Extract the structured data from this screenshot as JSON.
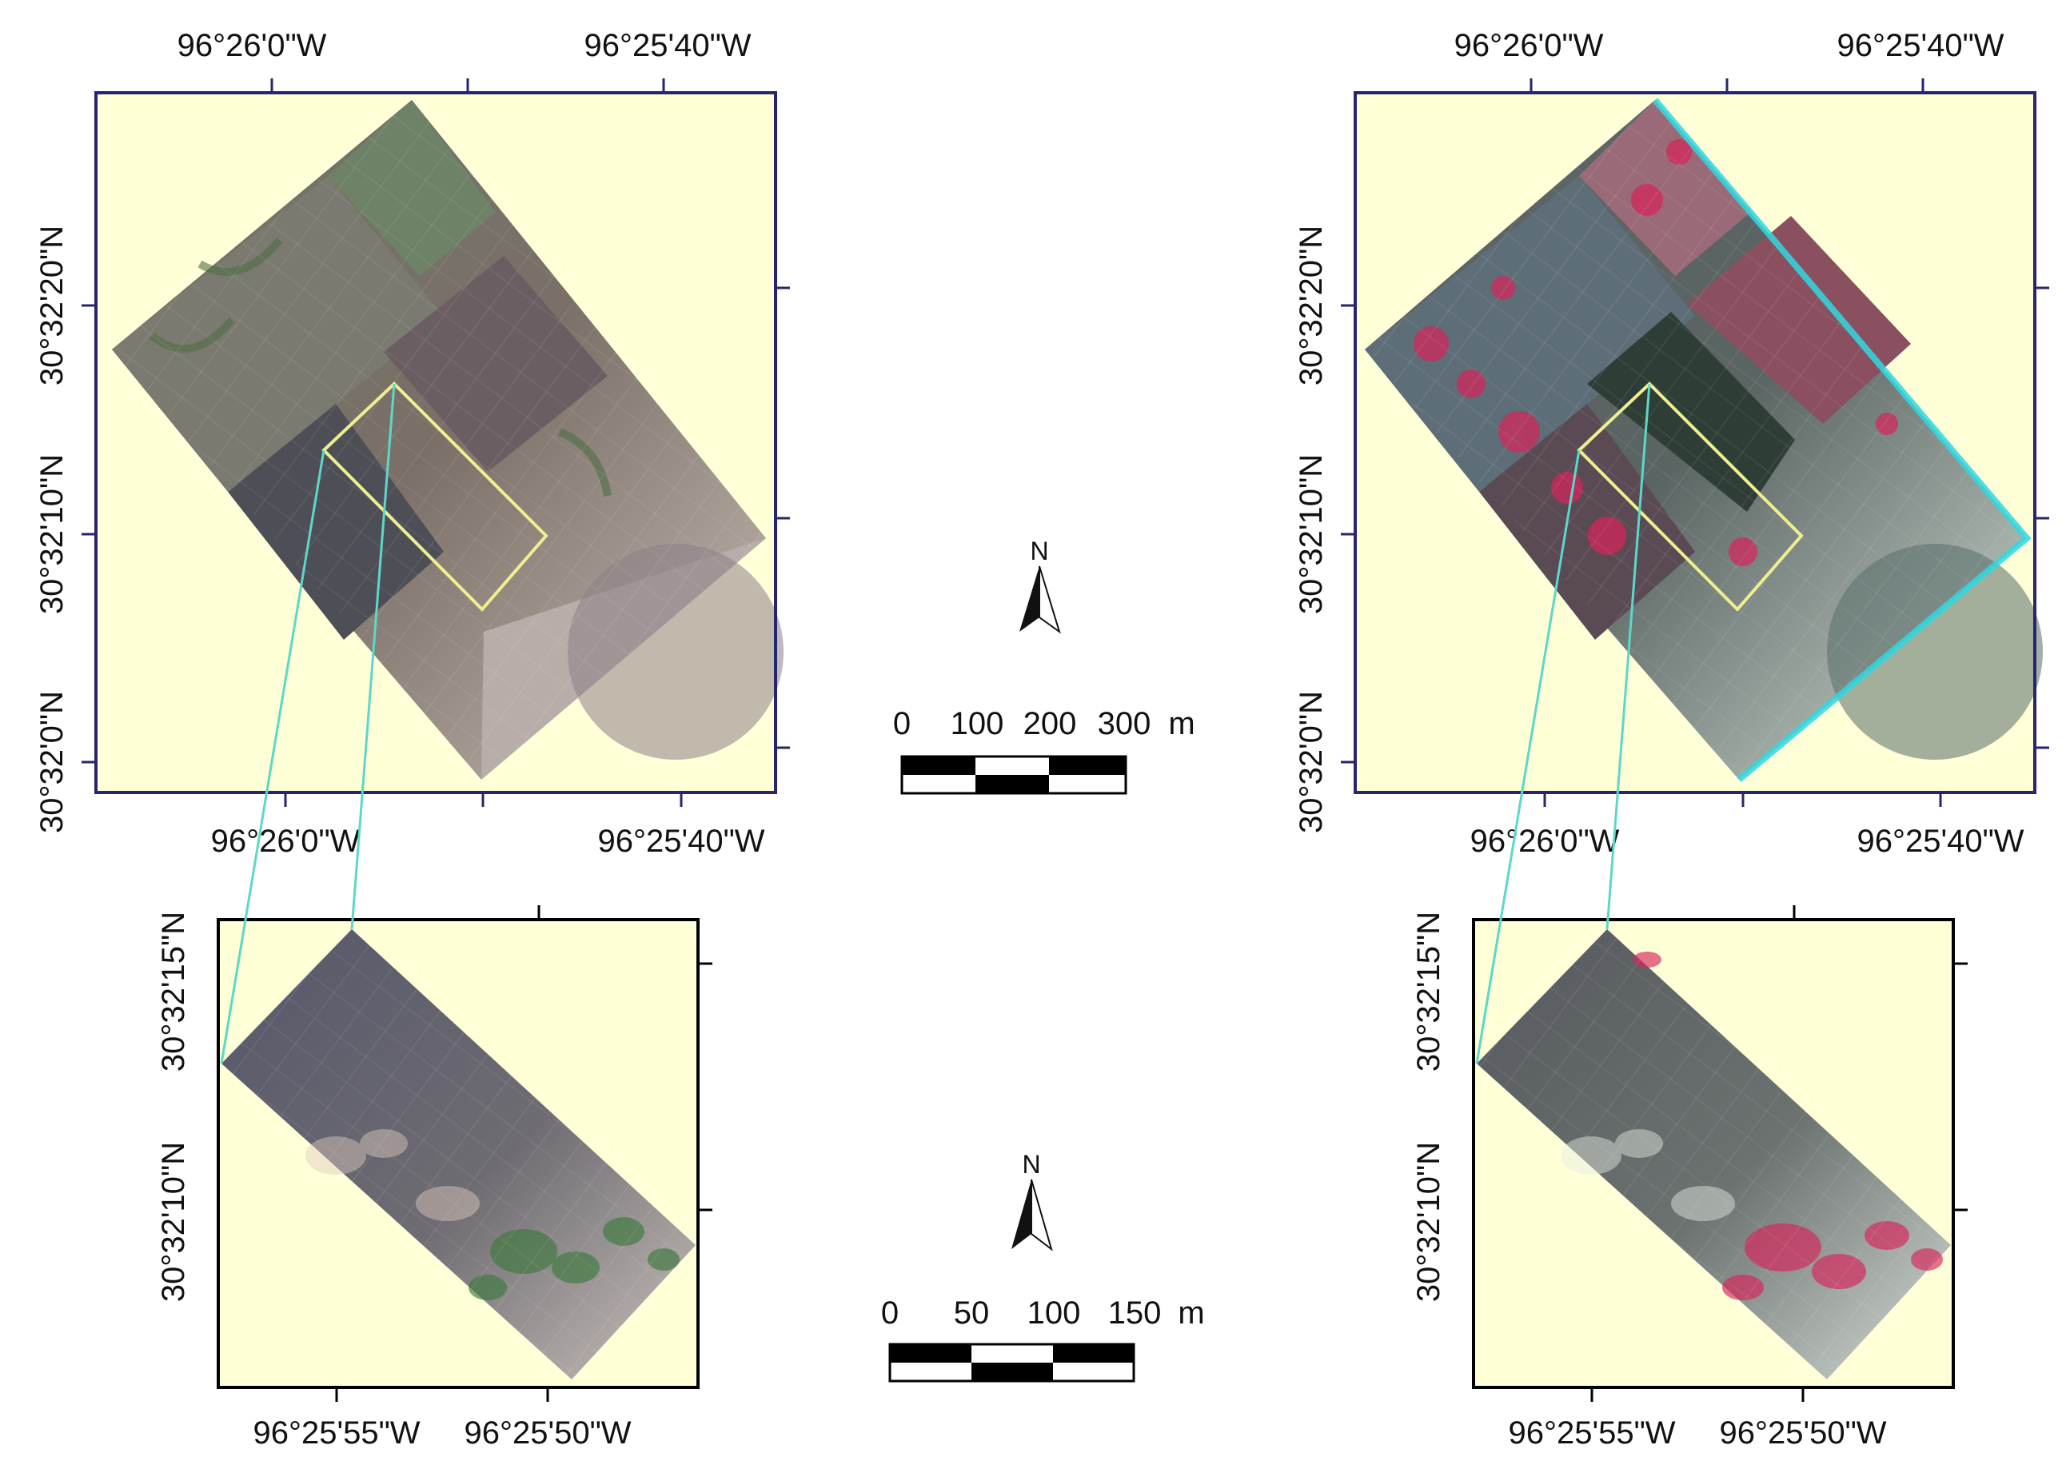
{
  "colors": {
    "map_background": "#FFFFD8",
    "top_frame": "#26266E",
    "bottom_frame": "#000000",
    "callout_line": "#5CD8C8",
    "subplot_outline": "#F0EE90",
    "true_color_soil": "#8C8378",
    "false_color_vegetation": "#D8245A",
    "false_color_edge": "#30D8E0"
  },
  "maps": {
    "top_left": {
      "x_ticks_top": [
        "96°26'0\"W",
        "96°25'40\"W"
      ],
      "x_ticks_bottom": [
        "96°26'0\"W",
        "96°25'40\"W"
      ],
      "y_ticks": [
        "30°32'20\"N",
        "30°32'10\"N",
        "30°32'0\"N"
      ]
    },
    "top_right": {
      "x_ticks_top": [
        "96°26'0\"W",
        "96°25'40\"W"
      ],
      "x_ticks_bottom": [
        "96°26'0\"W",
        "96°25'40\"W"
      ],
      "y_ticks": [
        "30°32'20\"N",
        "30°32'10\"N",
        "30°32'0\"N"
      ]
    },
    "bottom_left": {
      "x_ticks_bottom": [
        "96°25'55\"W",
        "96°25'50\"W"
      ],
      "y_ticks": [
        "30°32'15\"N",
        "30°32'10\"N"
      ]
    },
    "bottom_right": {
      "x_ticks_bottom": [
        "96°25'55\"W",
        "96°25'50\"W"
      ],
      "y_ticks": [
        "30°32'15\"N",
        "30°32'10\"N"
      ]
    }
  },
  "north_arrow": {
    "label": "N"
  },
  "scale_bars": {
    "top": {
      "labels": [
        "0",
        "100",
        "200",
        "300"
      ],
      "unit": "m"
    },
    "bottom": {
      "labels": [
        "0",
        "50",
        "100",
        "150"
      ],
      "unit": "m"
    }
  }
}
